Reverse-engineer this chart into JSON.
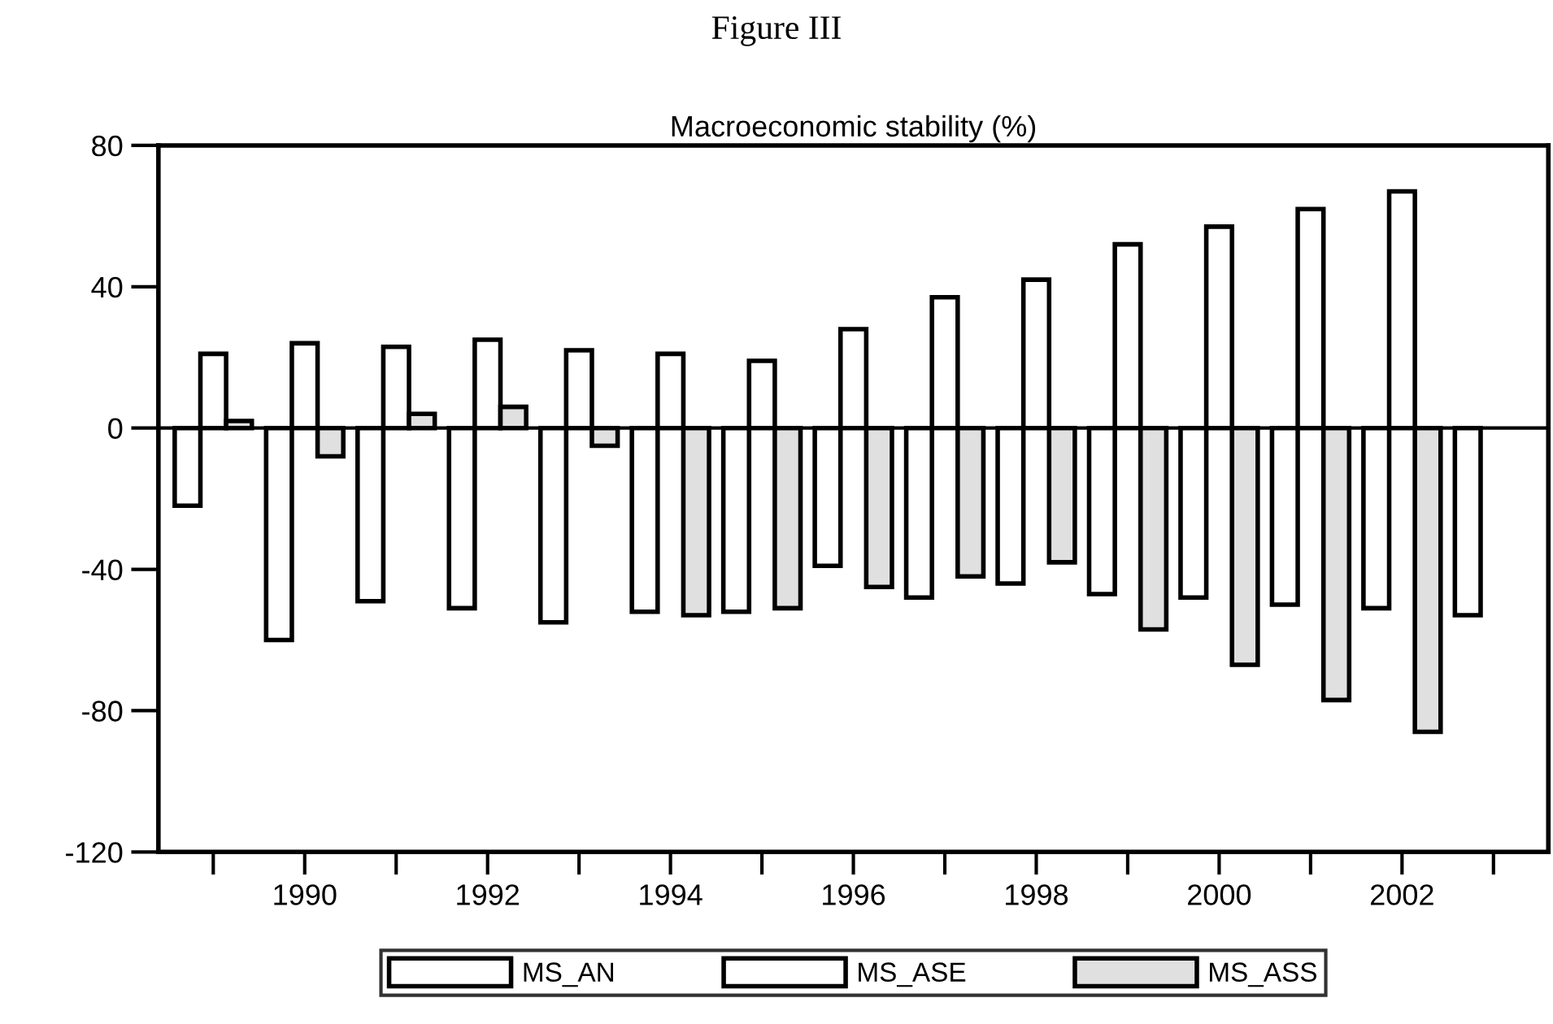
{
  "chart_data": {
    "type": "bar",
    "title": "Figure III",
    "subtitle": "Macroeconomic stability (%)",
    "categories": [
      null,
      "1990",
      null,
      "1992",
      null,
      "1994",
      null,
      "1996",
      null,
      "1998",
      null,
      "2000",
      null,
      "2002",
      null
    ],
    "series": [
      {
        "name": "MS_AN",
        "color": "#ffffff",
        "values": [
          -22,
          -60,
          -49,
          -51,
          -55,
          -52,
          -52,
          -39,
          -48,
          -44,
          -47,
          -48,
          -50,
          -51,
          -53
        ]
      },
      {
        "name": "MS_ASE",
        "color": "#ffffff",
        "values": [
          21,
          24,
          23,
          25,
          22,
          21,
          19,
          28,
          37,
          42,
          52,
          57,
          62,
          67,
          null
        ]
      },
      {
        "name": "MS_ASS",
        "color": "#e0e0e0",
        "values": [
          2,
          -8,
          4,
          6,
          -5,
          -53,
          -51,
          -45,
          -42,
          -38,
          -57,
          -67,
          -77,
          -86,
          null
        ]
      }
    ],
    "ylim": [
      -120,
      80
    ],
    "yticks": [
      {
        "value": -120,
        "label": "-120"
      },
      {
        "value": -80,
        "label": "-80"
      },
      {
        "value": -40,
        "label": "-40"
      },
      0,
      40,
      80
    ],
    "ref_lines": [
      {
        "axis": "y",
        "value": 0,
        "color": "#000000"
      }
    ],
    "grid": false,
    "legend": "bottom"
  }
}
